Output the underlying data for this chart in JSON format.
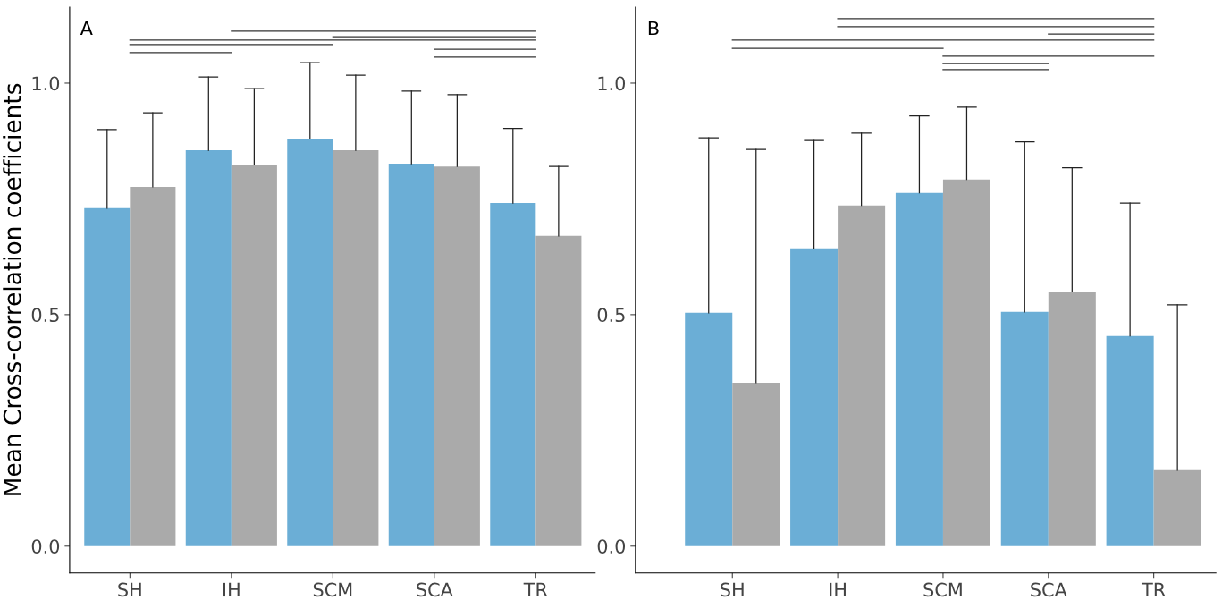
{
  "chart_data": [
    {
      "type": "bar",
      "title": "A",
      "ylabel": "Mean Cross-correlation coefficients",
      "categories": [
        "SH",
        "IH",
        "SCM",
        "SCA",
        "TR"
      ],
      "ylim": [
        -0.058,
        1.164
      ],
      "yticks": [
        {
          "value": 0,
          "label": "0.0"
        },
        {
          "value": 0.5,
          "label": "0.5"
        },
        {
          "value": 1,
          "label": "1.0"
        }
      ],
      "grid": false,
      "legend": false,
      "series": [
        {
          "color": "#6baed6",
          "values": [
            0.73,
            0.855,
            0.88,
            0.826,
            0.741
          ],
          "errors": [
            [
              0.73,
              0.9
            ],
            [
              0.855,
              1.013
            ],
            [
              0.88,
              1.044
            ],
            [
              0.826,
              0.983
            ],
            [
              0.741,
              0.902
            ]
          ]
        },
        {
          "color": "#aaaaaa",
          "values": [
            0.776,
            0.824,
            0.855,
            0.82,
            0.67
          ],
          "errors": [
            [
              0.776,
              0.936
            ],
            [
              0.824,
              0.988
            ],
            [
              0.855,
              1.017
            ],
            [
              0.82,
              0.975
            ],
            [
              0.67,
              0.82
            ]
          ]
        },
        {
          "type": "line",
          "color": "#333333",
          "values": [
            null,
            1.112,
            1.112,
            1.112,
            1.112
          ]
        },
        {
          "type": "line",
          "color": "#333333",
          "values": [
            null,
            null,
            1.1,
            1.1,
            1.1
          ]
        },
        {
          "type": "line",
          "color": "#333333",
          "values": [
            1.093,
            1.093,
            1.093,
            1.093,
            1.093
          ]
        },
        {
          "type": "line",
          "color": "#333333",
          "values": [
            1.083,
            1.083,
            1.083,
            null,
            null
          ]
        },
        {
          "type": "line",
          "color": "#333333",
          "values": [
            null,
            null,
            null,
            1.073,
            1.073
          ]
        },
        {
          "type": "line",
          "color": "#333333",
          "values": [
            1.066,
            1.066,
            null,
            null,
            null
          ]
        },
        {
          "type": "line",
          "color": "#333333",
          "values": [
            null,
            null,
            null,
            1.056,
            1.056
          ]
        }
      ]
    },
    {
      "type": "bar",
      "title": "B",
      "categories": [
        "SH",
        "IH",
        "SCM",
        "SCA",
        "TR"
      ],
      "ylim": [
        -0.058,
        1.164
      ],
      "yticks": [
        {
          "value": 0,
          "label": "0.0"
        },
        {
          "value": 0.5,
          "label": "0.5"
        },
        {
          "value": 1,
          "label": "1.0"
        }
      ],
      "grid": false,
      "legend": false,
      "series": [
        {
          "color": "#6baed6",
          "values": [
            0.504,
            0.643,
            0.763,
            0.506,
            0.454
          ],
          "errors": [
            [
              0.504,
              0.882
            ],
            [
              0.643,
              0.876
            ],
            [
              0.763,
              0.929
            ],
            [
              0.506,
              0.873
            ],
            [
              0.454,
              0.741
            ]
          ]
        },
        {
          "color": "#aaaaaa",
          "values": [
            0.353,
            0.736,
            0.792,
            0.55,
            0.164
          ],
          "errors": [
            [
              0.353,
              0.857
            ],
            [
              0.736,
              0.892
            ],
            [
              0.792,
              0.948
            ],
            [
              0.55,
              0.817
            ],
            [
              0.164,
              0.521
            ]
          ]
        },
        {
          "type": "line",
          "color": "#333333",
          "values": [
            null,
            1.139,
            1.139,
            1.139,
            1.139
          ]
        },
        {
          "type": "line",
          "color": "#333333",
          "values": [
            null,
            1.122,
            1.122,
            1.122,
            1.122
          ]
        },
        {
          "type": "line",
          "color": "#333333",
          "values": [
            null,
            null,
            null,
            1.106,
            1.106
          ]
        },
        {
          "type": "line",
          "color": "#333333",
          "values": [
            1.093,
            1.093,
            1.093,
            1.093,
            1.093
          ]
        },
        {
          "type": "line",
          "color": "#333333",
          "values": [
            1.075,
            1.075,
            1.075,
            null,
            null
          ]
        },
        {
          "type": "line",
          "color": "#333333",
          "values": [
            null,
            null,
            1.058,
            1.058,
            1.058
          ]
        },
        {
          "type": "line",
          "color": "#333333",
          "values": [
            null,
            null,
            1.042,
            1.042,
            null
          ]
        },
        {
          "type": "line",
          "color": "#333333",
          "values": [
            null,
            null,
            1.029,
            1.029,
            null
          ]
        }
      ]
    }
  ]
}
